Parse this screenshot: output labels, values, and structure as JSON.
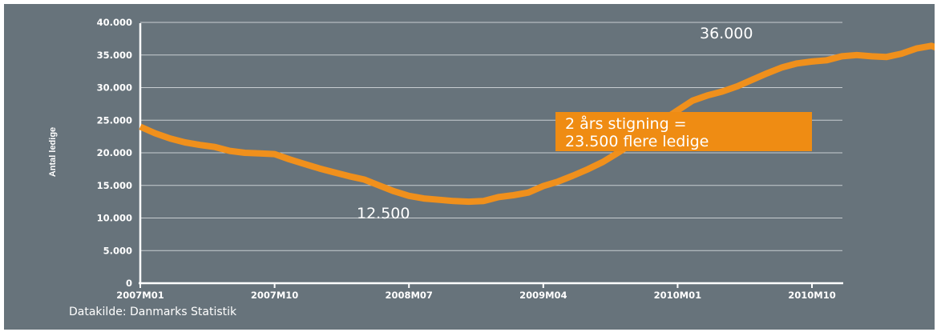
{
  "chart_data": {
    "type": "line",
    "title": "",
    "ylabel": "Antal ledige",
    "xlabel": "",
    "ylim": [
      0,
      40000
    ],
    "yticks": [
      0,
      5000,
      10000,
      15000,
      20000,
      25000,
      30000,
      35000,
      40000
    ],
    "ytick_labels": [
      "0",
      "5.000",
      "10.000",
      "15.000",
      "20.000",
      "25.000",
      "30.000",
      "35.000",
      "40.000"
    ],
    "x_labels": [
      "2007M01",
      "2007M10",
      "2008M07",
      "2009M04",
      "2010M01",
      "2010M10"
    ],
    "grid": "horizontal",
    "color": "#f0901c",
    "series": [
      {
        "values": [
          24000,
          23000,
          22200,
          21600,
          21200,
          20900,
          20300,
          20000,
          19900,
          19800,
          19000,
          18300,
          17600,
          17000,
          16400,
          15900,
          15000,
          14100,
          13400,
          13000,
          12800,
          12600,
          12500,
          12600,
          13200,
          13500,
          13900,
          14900,
          15600,
          16500,
          17500,
          18600,
          20000,
          21500,
          23300,
          25000,
          26500,
          28000,
          28800,
          29400,
          30200,
          31200,
          32200,
          33100,
          33700,
          34000,
          34200,
          34800,
          35000,
          34800,
          34700,
          35200,
          36000,
          36400,
          35600,
          36000,
          36300,
          36100,
          36000
        ]
      }
    ],
    "annotations": {
      "min_label": "12.500",
      "max_label": "36.000",
      "callout_line1": "2 års stigning =",
      "callout_line2": "23.500 flere ledige"
    }
  },
  "source": "Datakilde: Danmarks Statistik"
}
